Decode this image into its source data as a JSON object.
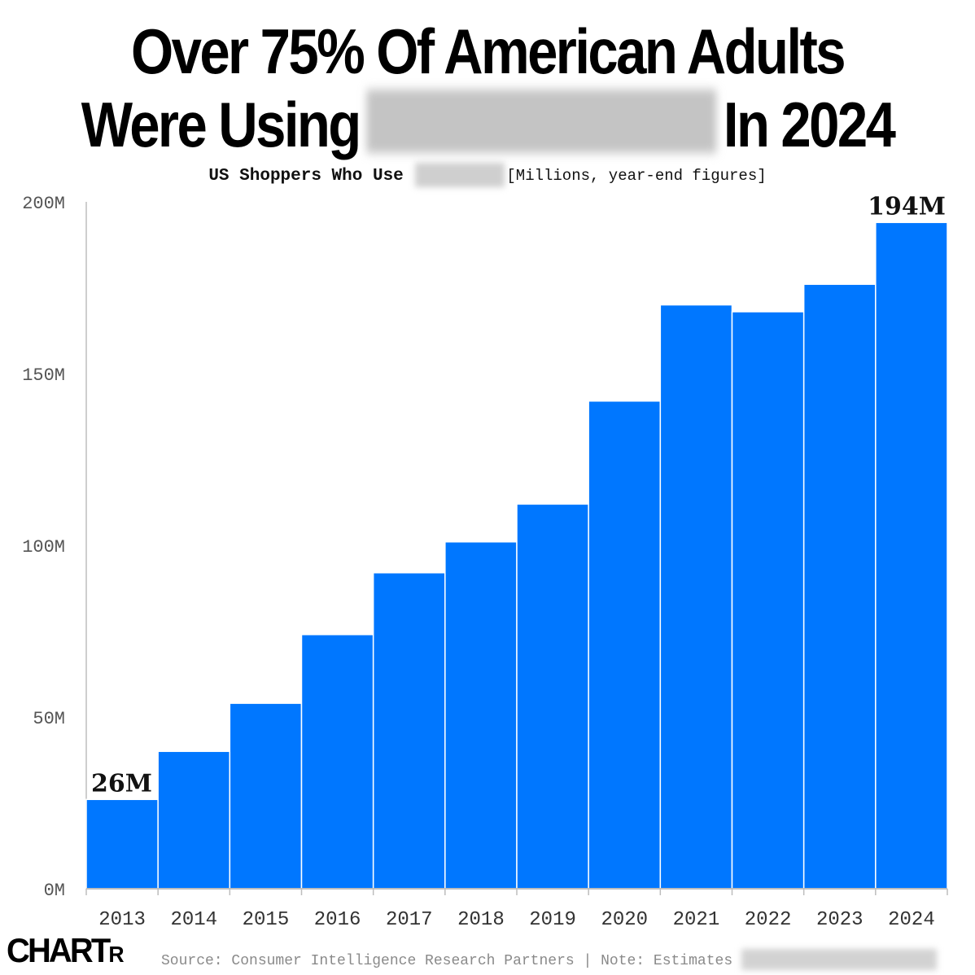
{
  "title": {
    "line1": "Over 75% Of American Adults",
    "line2_start": "Were Using",
    "line2_end": "In 2024"
  },
  "subtitle": {
    "bold": "US Shoppers Who Use",
    "units": "[Millions, year-end figures]"
  },
  "footer": {
    "logo_main": "CHART",
    "logo_small": "R",
    "source": "Source: Consumer Intelligence Research Partners | Note: Estimates"
  },
  "colors": {
    "bar": "#0077ff",
    "axis": "#bdbdbd",
    "tick_text": "#555555"
  },
  "chart_data": {
    "type": "bar",
    "title": "US Shoppers Who Use",
    "ylabel": "Millions, year-end figures",
    "categories": [
      "2013",
      "2014",
      "2015",
      "2016",
      "2017",
      "2018",
      "2019",
      "2020",
      "2021",
      "2022",
      "2023",
      "2024"
    ],
    "values": [
      26,
      40,
      54,
      74,
      92,
      101,
      112,
      142,
      170,
      168,
      176,
      194
    ],
    "ylim": [
      0,
      200
    ],
    "yticks": [
      0,
      50,
      100,
      150,
      200
    ],
    "ytick_labels": [
      "0M",
      "50M",
      "100M",
      "150M",
      "200M"
    ],
    "data_labels": [
      {
        "category": "2013",
        "text": "26M"
      },
      {
        "category": "2024",
        "text": "194M"
      }
    ],
    "grid": false
  }
}
